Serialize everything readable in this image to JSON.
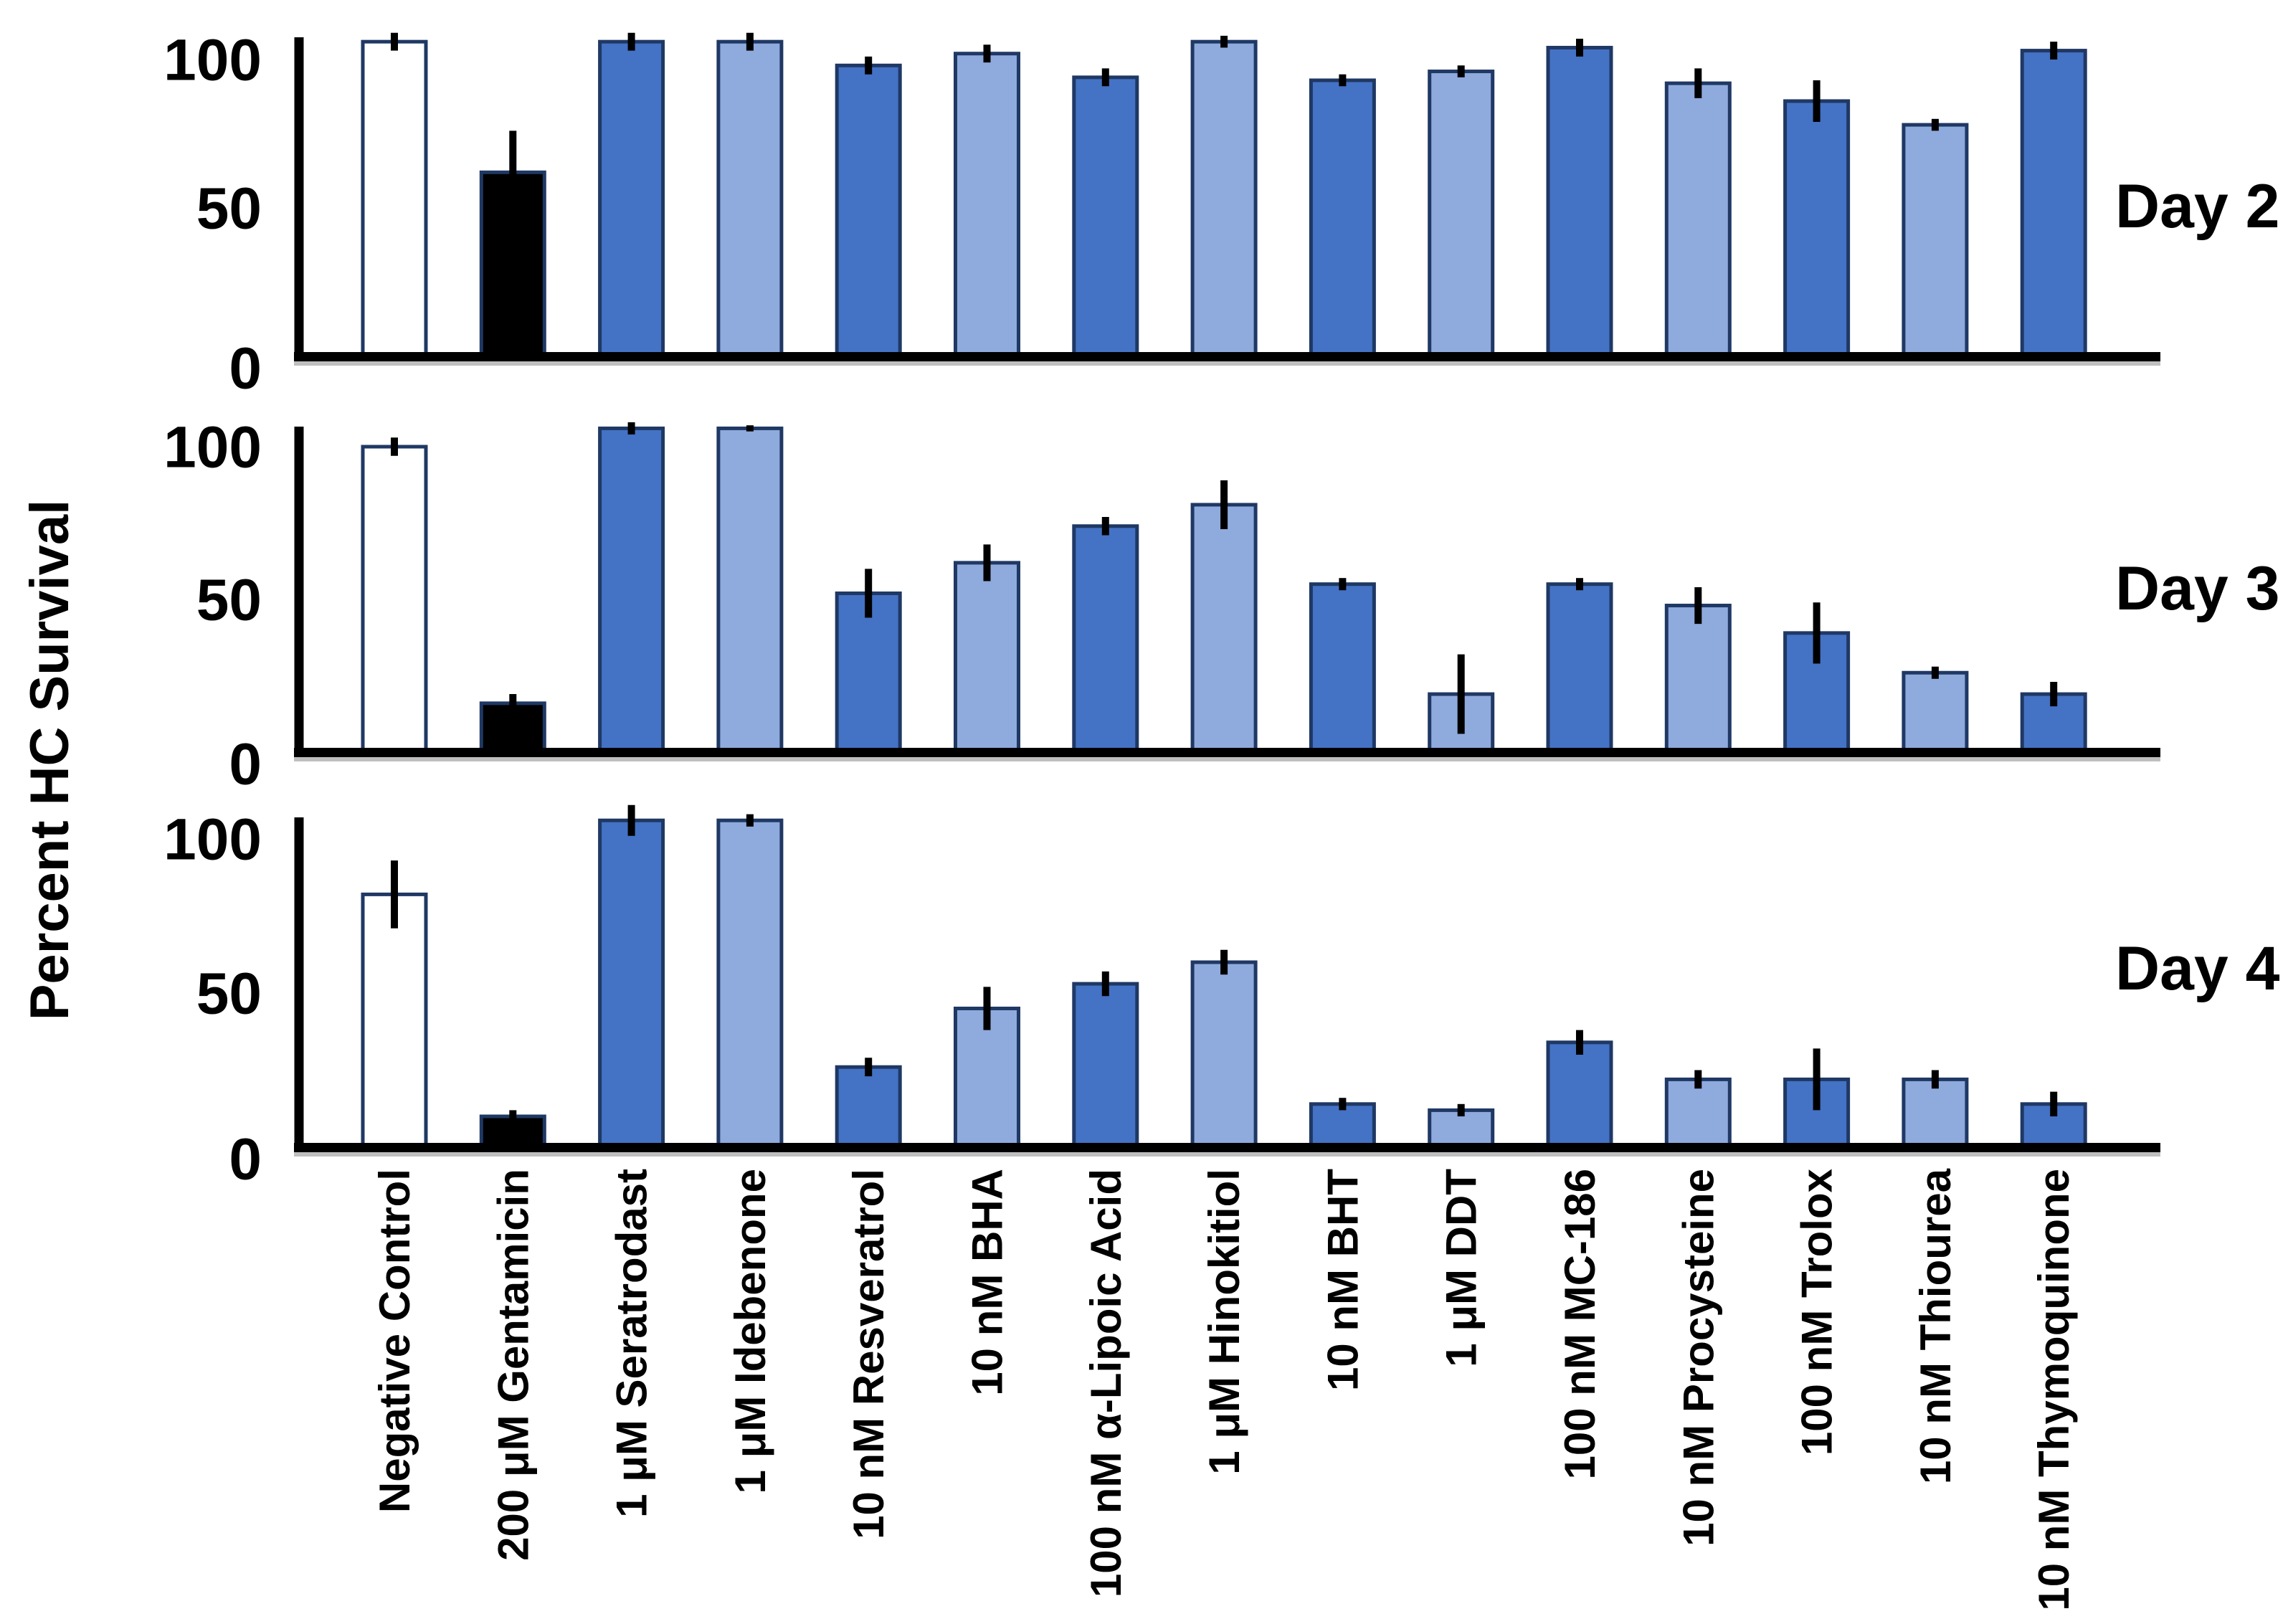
{
  "figure": {
    "ylabel": "Percent HC Survival",
    "panel_labels": [
      "Day 2",
      "Day 3",
      "Day 4"
    ]
  },
  "chart_data": {
    "type": "bar",
    "title": "",
    "xlabel": "",
    "ylabel": "Percent HC Survival",
    "ylim": [
      0,
      107
    ],
    "yticks": [
      0,
      50,
      100
    ],
    "grid": false,
    "legend_position": "none",
    "categories": [
      "Negative Control",
      "200 μM Gentamicin",
      "1 μM Seratrodast",
      "1 μM Idebenone",
      "10 nM Resveratrol",
      "10 nM BHA",
      "100 nM α-Lipoic Acid",
      "1 μM Hinokitiol",
      "10 nM BHT",
      "1 μM DDT",
      "100 nM MC-186",
      "10 nM Procysteine",
      "100 nM Trolox",
      "10 nM Thiourea",
      "10 nM Thymoquinone"
    ],
    "bar_styles": [
      "white",
      "black",
      "dark",
      "light",
      "dark",
      "light",
      "dark",
      "light",
      "dark",
      "light",
      "dark",
      "light",
      "dark",
      "light",
      "dark"
    ],
    "series": [
      {
        "name": "Day 2",
        "values": [
          106,
          62,
          106,
          106,
          98,
          102,
          94,
          106,
          93,
          96,
          104,
          92,
          86,
          78,
          103
        ],
        "errors": [
          3,
          14,
          3,
          3,
          3,
          3,
          3,
          2,
          2,
          2,
          3,
          5,
          7,
          2,
          3
        ]
      },
      {
        "name": "Day 3",
        "values": [
          100,
          16,
          106,
          106,
          52,
          62,
          74,
          81,
          55,
          19,
          55,
          48,
          39,
          26,
          19
        ],
        "errors": [
          3,
          3,
          2,
          1,
          8,
          6,
          3,
          8,
          2,
          13,
          2,
          6,
          10,
          2,
          4
        ]
      },
      {
        "name": "Day 4",
        "values": [
          82,
          10,
          106,
          106,
          26,
          45,
          53,
          60,
          14,
          12,
          34,
          22,
          22,
          22,
          14
        ],
        "errors": [
          11,
          2,
          5,
          2,
          3,
          7,
          4,
          4,
          2,
          2,
          4,
          3,
          10,
          3,
          4
        ]
      }
    ],
    "colors": {
      "dark_blue": "#4472C4",
      "light_blue": "#8FAADC",
      "bar_outline": "#1F3864",
      "black": "#000000",
      "white": "#FFFFFF",
      "axis": "#000000",
      "baseline_shadow": "#BFBFBF"
    }
  }
}
